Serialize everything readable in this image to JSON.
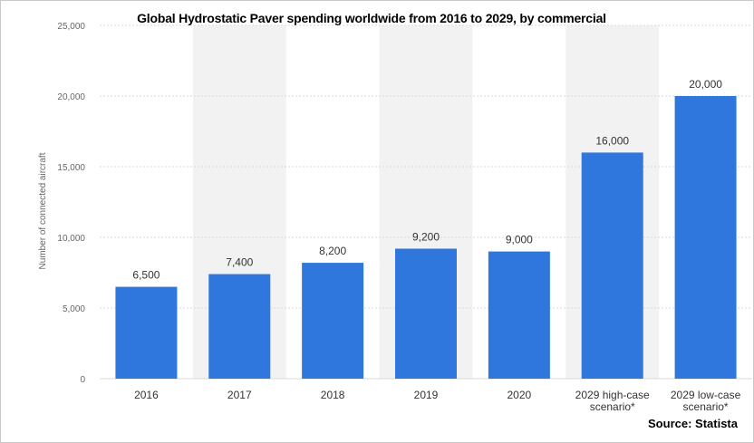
{
  "chart_data": {
    "type": "bar",
    "title": "Global Hydrostatic Paver spending worldwide from 2016 to 2029, by commercial",
    "ylabel": "Number of connected aircraft",
    "xlabel": "",
    "categories": [
      "2016",
      "2017",
      "2018",
      "2019",
      "2020",
      "2029 high-case scenario*",
      "2029 low-case scenario*"
    ],
    "category_lines": [
      [
        "2016"
      ],
      [
        "2017"
      ],
      [
        "2018"
      ],
      [
        "2019"
      ],
      [
        "2020"
      ],
      [
        "2029 high-case",
        "scenario*"
      ],
      [
        "2029 low-case",
        "scenario*"
      ]
    ],
    "values": [
      6500,
      7400,
      8200,
      9200,
      9000,
      16000,
      20000
    ],
    "value_labels": [
      "6,500",
      "7,400",
      "8,200",
      "9,200",
      "9,000",
      "16,000",
      "20,000"
    ],
    "ylim": [
      0,
      25000
    ],
    "yticks": [
      0,
      5000,
      10000,
      15000,
      20000,
      25000
    ],
    "ytick_labels": [
      "0",
      "5,000",
      "10,000",
      "15,000",
      "20,000",
      "25,000"
    ],
    "grid": true,
    "bar_color": "#2f77dc",
    "alt_band_color": "#f2f2f2"
  },
  "source": "Source: Statista"
}
